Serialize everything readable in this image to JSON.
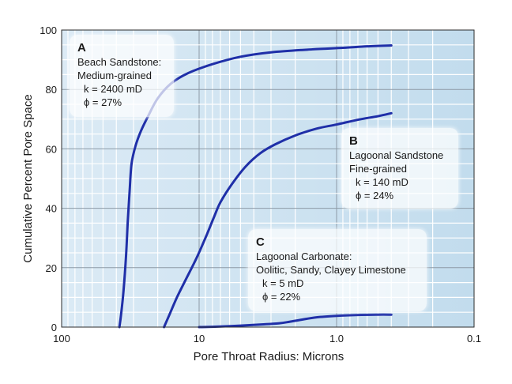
{
  "chart_data": {
    "type": "line",
    "title": "",
    "xlabel": "Pore Throat Radius: Microns",
    "ylabel": "Cumulative Percent Pore Space",
    "x_scale": "log",
    "x_reversed": true,
    "xlim": [
      100,
      0.1
    ],
    "ylim": [
      0,
      100
    ],
    "grid": true,
    "x_ticks": [
      100,
      10,
      1.0,
      0.1
    ],
    "x_tick_labels": [
      "100",
      "10",
      "1.0",
      "0.1"
    ],
    "y_ticks": [
      0,
      20,
      40,
      60,
      80,
      100
    ],
    "y_tick_labels": [
      "0",
      "20",
      "40",
      "60",
      "80",
      "100"
    ],
    "series": [
      {
        "id": "A",
        "color": "#1f2fa8",
        "points": [
          [
            38,
            0
          ],
          [
            37,
            4
          ],
          [
            35.5,
            12
          ],
          [
            34,
            24
          ],
          [
            33,
            36
          ],
          [
            32,
            46
          ],
          [
            31,
            55
          ],
          [
            29,
            61
          ],
          [
            26.5,
            66
          ],
          [
            23.5,
            71
          ],
          [
            20,
            77
          ],
          [
            16,
            82
          ],
          [
            12,
            85.5
          ],
          [
            8,
            88.5
          ],
          [
            5,
            91
          ],
          [
            3,
            92.5
          ],
          [
            1.5,
            93.5
          ],
          [
            0.9,
            94
          ],
          [
            0.6,
            94.5
          ],
          [
            0.4,
            94.8
          ]
        ]
      },
      {
        "id": "B",
        "color": "#1f2fa8",
        "points": [
          [
            18,
            0
          ],
          [
            16.5,
            4
          ],
          [
            14.5,
            10
          ],
          [
            12.5,
            16
          ],
          [
            10.5,
            23
          ],
          [
            9,
            30
          ],
          [
            7.8,
            37
          ],
          [
            7,
            42
          ],
          [
            5.8,
            48
          ],
          [
            4.6,
            54
          ],
          [
            3.6,
            58.5
          ],
          [
            2.8,
            61.5
          ],
          [
            2,
            64.5
          ],
          [
            1.4,
            66.8
          ],
          [
            1,
            68.2
          ],
          [
            0.7,
            69.8
          ],
          [
            0.5,
            71
          ],
          [
            0.4,
            72
          ]
        ]
      },
      {
        "id": "C",
        "color": "#1f2fa8",
        "points": [
          [
            10,
            0
          ],
          [
            7,
            0.2
          ],
          [
            5,
            0.5
          ],
          [
            3.5,
            0.9
          ],
          [
            2.6,
            1.3
          ],
          [
            2.2,
            1.8
          ],
          [
            1.8,
            2.5
          ],
          [
            1.4,
            3.3
          ],
          [
            1,
            3.8
          ],
          [
            0.7,
            4.1
          ],
          [
            0.5,
            4.2
          ],
          [
            0.4,
            4.2
          ]
        ]
      }
    ],
    "annotations": [
      {
        "letter": "A",
        "lines": [
          "Beach Sandstone:",
          "Medium-grained"
        ],
        "props": [
          "k = 2400 mD",
          "ϕ = 27%"
        ]
      },
      {
        "letter": "B",
        "lines": [
          "Lagoonal Sandstone",
          "Fine-grained"
        ],
        "props": [
          "k = 140 mD",
          "ϕ = 24%"
        ]
      },
      {
        "letter": "C",
        "lines": [
          "Lagoonal Carbonate:",
          "Oolitic, Sandy, Clayey Limestone"
        ],
        "props": [
          "k = 5 mD",
          "ϕ = 22%"
        ]
      }
    ]
  }
}
